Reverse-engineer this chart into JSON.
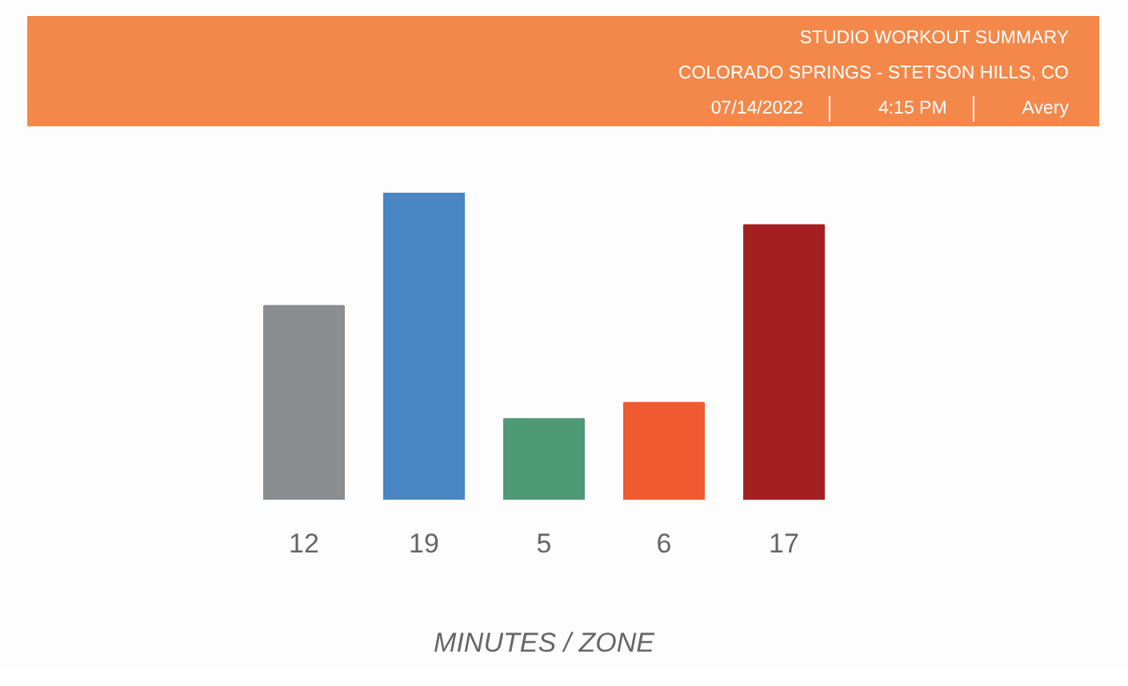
{
  "chart_data": {
    "type": "bar",
    "title": "STUDIO WORKOUT SUMMARY",
    "subtitle": "COLORADO SPRINGS - STETSON HILLS, CO",
    "annotations": [
      "07/14/2022",
      "4:15 PM",
      "Avery"
    ],
    "xlabel": "MINUTES / ZONE",
    "categories": [
      null,
      null,
      null,
      null,
      null
    ],
    "values": [
      12,
      19,
      5,
      6,
      17
    ],
    "colors": [
      "#8a8e91",
      "#4a86c4",
      "#4f9a76",
      "#f05a30",
      "#a32020"
    ],
    "data_labels": true,
    "grid": false
  }
}
